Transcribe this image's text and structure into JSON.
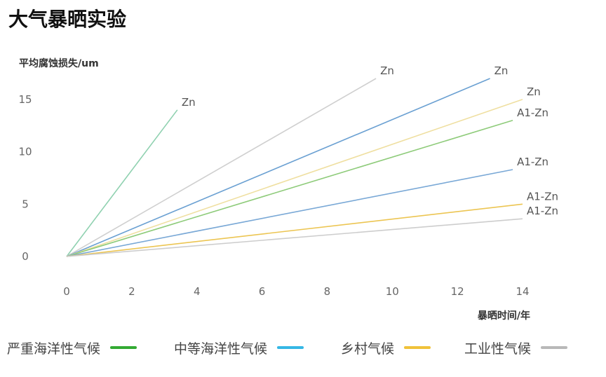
{
  "title": "大气暴晒实验",
  "chart_data": {
    "type": "line",
    "ylabel": "平均腐蚀损失/um",
    "xlabel": "暴晒时间/年",
    "xlim": [
      0,
      14
    ],
    "ylim": [
      0,
      17
    ],
    "xticks": [
      0,
      2,
      4,
      6,
      8,
      10,
      12,
      14
    ],
    "yticks": [
      0,
      5,
      10,
      15
    ],
    "grid": false,
    "legend_position": "bottom",
    "series": [
      {
        "name": "严重海洋性气候",
        "label": "Zn",
        "color": "#8fd1b0",
        "points": [
          [
            0,
            0
          ],
          [
            3.4,
            14
          ]
        ]
      },
      {
        "name": "工业性气候",
        "label": "Zn",
        "color": "#cfcfcf",
        "points": [
          [
            0,
            0
          ],
          [
            9.5,
            17
          ]
        ]
      },
      {
        "name": "中等海洋性气候",
        "label": "Zn",
        "color": "#6aa0d2",
        "points": [
          [
            0,
            0
          ],
          [
            13,
            17
          ]
        ]
      },
      {
        "name": "乡村气候",
        "label": "Zn",
        "color": "#efdfa0",
        "points": [
          [
            0,
            0
          ],
          [
            14,
            15
          ]
        ]
      },
      {
        "name": "严重海洋性气候",
        "label": "A1-Zn",
        "color": "#8ecb7a",
        "points": [
          [
            0,
            0
          ],
          [
            13.7,
            13
          ]
        ]
      },
      {
        "name": "中等海洋性气候",
        "label": "A1-Zn",
        "color": "#79a8d6",
        "points": [
          [
            0,
            0
          ],
          [
            13.7,
            8.3
          ]
        ]
      },
      {
        "name": "乡村气候",
        "label": "A1-Zn",
        "color": "#ecc552",
        "points": [
          [
            0,
            0
          ],
          [
            14,
            5
          ]
        ]
      },
      {
        "name": "工业性气候",
        "label": "A1-Zn",
        "color": "#cdcdcd",
        "points": [
          [
            0,
            0
          ],
          [
            14,
            3.6
          ]
        ]
      }
    ]
  },
  "legend": [
    {
      "label": "严重海洋性气候",
      "color": "#33aa33"
    },
    {
      "label": "中等海洋性气候",
      "color": "#35b7e5"
    },
    {
      "label": "乡村气候",
      "color": "#f0c23a"
    },
    {
      "label": "工业性气候",
      "color": "#b8b8b8"
    }
  ]
}
